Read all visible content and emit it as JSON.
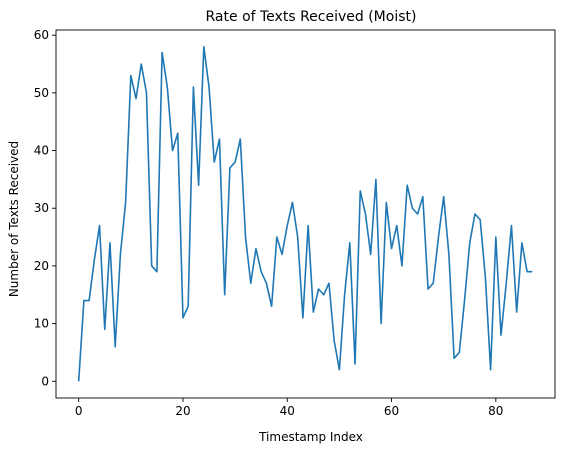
{
  "chart_data": {
    "type": "line",
    "title": "Rate of Texts Received (Moist)",
    "xlabel": "Timestamp Index",
    "ylabel": "Number of Texts Received",
    "xlim": [
      -4.35,
      91.35
    ],
    "ylim": [
      -2.9,
      60.9
    ],
    "xticks": [
      0,
      20,
      40,
      60,
      80
    ],
    "yticks": [
      0,
      10,
      20,
      30,
      40,
      50,
      60
    ],
    "grid": false,
    "legend": null,
    "series": [
      {
        "color": "#1f77b4",
        "x": [
          0,
          1,
          2,
          3,
          4,
          5,
          6,
          7,
          8,
          9,
          10,
          11,
          12,
          13,
          14,
          15,
          16,
          17,
          18,
          19,
          20,
          21,
          22,
          23,
          24,
          25,
          26,
          27,
          28,
          29,
          30,
          31,
          32,
          33,
          34,
          35,
          36,
          37,
          38,
          39,
          40,
          41,
          42,
          43,
          44,
          45,
          46,
          47,
          48,
          49,
          50,
          51,
          52,
          53,
          54,
          55,
          56,
          57,
          58,
          59,
          60,
          61,
          62,
          63,
          64,
          65,
          66,
          67,
          68,
          69,
          70,
          71,
          72,
          73,
          74,
          75,
          76,
          77,
          78,
          79,
          80,
          81,
          82,
          83,
          84,
          85,
          86,
          87
        ],
        "y": [
          0,
          14,
          14,
          21,
          27,
          9,
          24,
          6,
          22,
          31,
          53,
          49,
          55,
          50,
          20,
          19,
          57,
          51,
          40,
          43,
          11,
          13,
          51,
          34,
          58,
          51,
          38,
          42,
          15,
          37,
          38,
          42,
          25,
          17,
          23,
          19,
          17,
          13,
          25,
          22,
          27,
          31,
          25,
          11,
          27,
          12,
          16,
          15,
          17,
          7,
          2,
          15,
          24,
          3,
          33,
          29,
          22,
          35,
          10,
          31,
          23,
          27,
          20,
          34,
          30,
          29,
          32,
          16,
          17,
          25,
          32,
          22,
          4,
          5,
          14,
          24,
          29,
          28,
          18,
          2,
          25,
          8,
          17,
          27,
          12,
          24,
          19,
          19
        ]
      }
    ]
  }
}
